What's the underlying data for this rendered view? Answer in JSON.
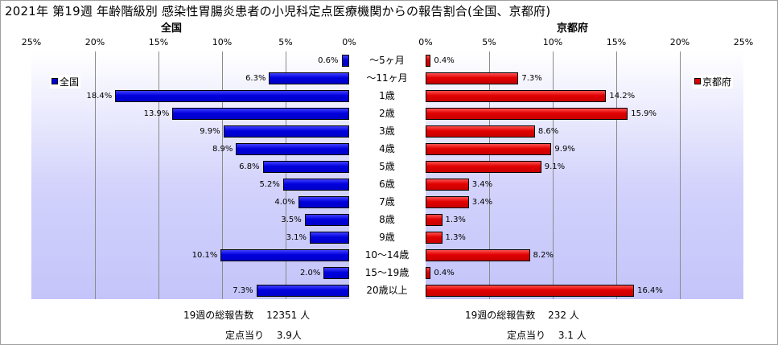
{
  "title": "2021年 第19週 年齢階級別 感染性胃腸炎患者の小児科定点医療機関からの報告割合(全国、京都府)",
  "chart_data": {
    "type": "bar",
    "categories": [
      "～5ヶ月",
      "～11ヶ月",
      "1歳",
      "2歳",
      "3歳",
      "4歳",
      "5歳",
      "6歳",
      "7歳",
      "8歳",
      "9歳",
      "10～14歳",
      "15～19歳",
      "20歳以上"
    ],
    "xlim": [
      0,
      25
    ],
    "ticks": [
      "25%",
      "20%",
      "15%",
      "10%",
      "5%",
      "0%"
    ],
    "ticks_right": [
      "0%",
      "5%",
      "10%",
      "15%",
      "20%",
      "25%"
    ],
    "grid": true,
    "series": [
      {
        "name": "全国",
        "panel_title": "全国",
        "color": "#0000dc",
        "values": [
          0.6,
          6.3,
          18.4,
          13.9,
          9.9,
          8.9,
          6.8,
          5.2,
          4.0,
          3.5,
          3.1,
          10.1,
          2.0,
          7.3
        ],
        "labels": [
          "0.6%",
          "6.3%",
          "18.4%",
          "13.9%",
          "9.9%",
          "8.9%",
          "6.8%",
          "5.2%",
          "4.0%",
          "3.5%",
          "3.1%",
          "10.1%",
          "2.0%",
          "7.3%"
        ],
        "legend": "全国"
      },
      {
        "name": "京都府",
        "panel_title": "京都府",
        "color": "#e00000",
        "values": [
          0.4,
          7.3,
          14.2,
          15.9,
          8.6,
          9.9,
          9.1,
          3.4,
          3.4,
          1.3,
          1.3,
          8.2,
          0.4,
          16.4
        ],
        "labels": [
          "0.4%",
          "7.3%",
          "14.2%",
          "15.9%",
          "8.6%",
          "9.9%",
          "9.1%",
          "3.4%",
          "3.4%",
          "1.3%",
          "1.3%",
          "8.2%",
          "0.4%",
          "16.4%"
        ],
        "legend": "京都府"
      }
    ]
  },
  "footer": {
    "left_reports": "19週の総報告数　 12351 人",
    "left_per": "定点当り　 3.9人",
    "right_reports": "19週の総報告数　 232 人",
    "right_per": "定点当り　 3.1 人"
  }
}
